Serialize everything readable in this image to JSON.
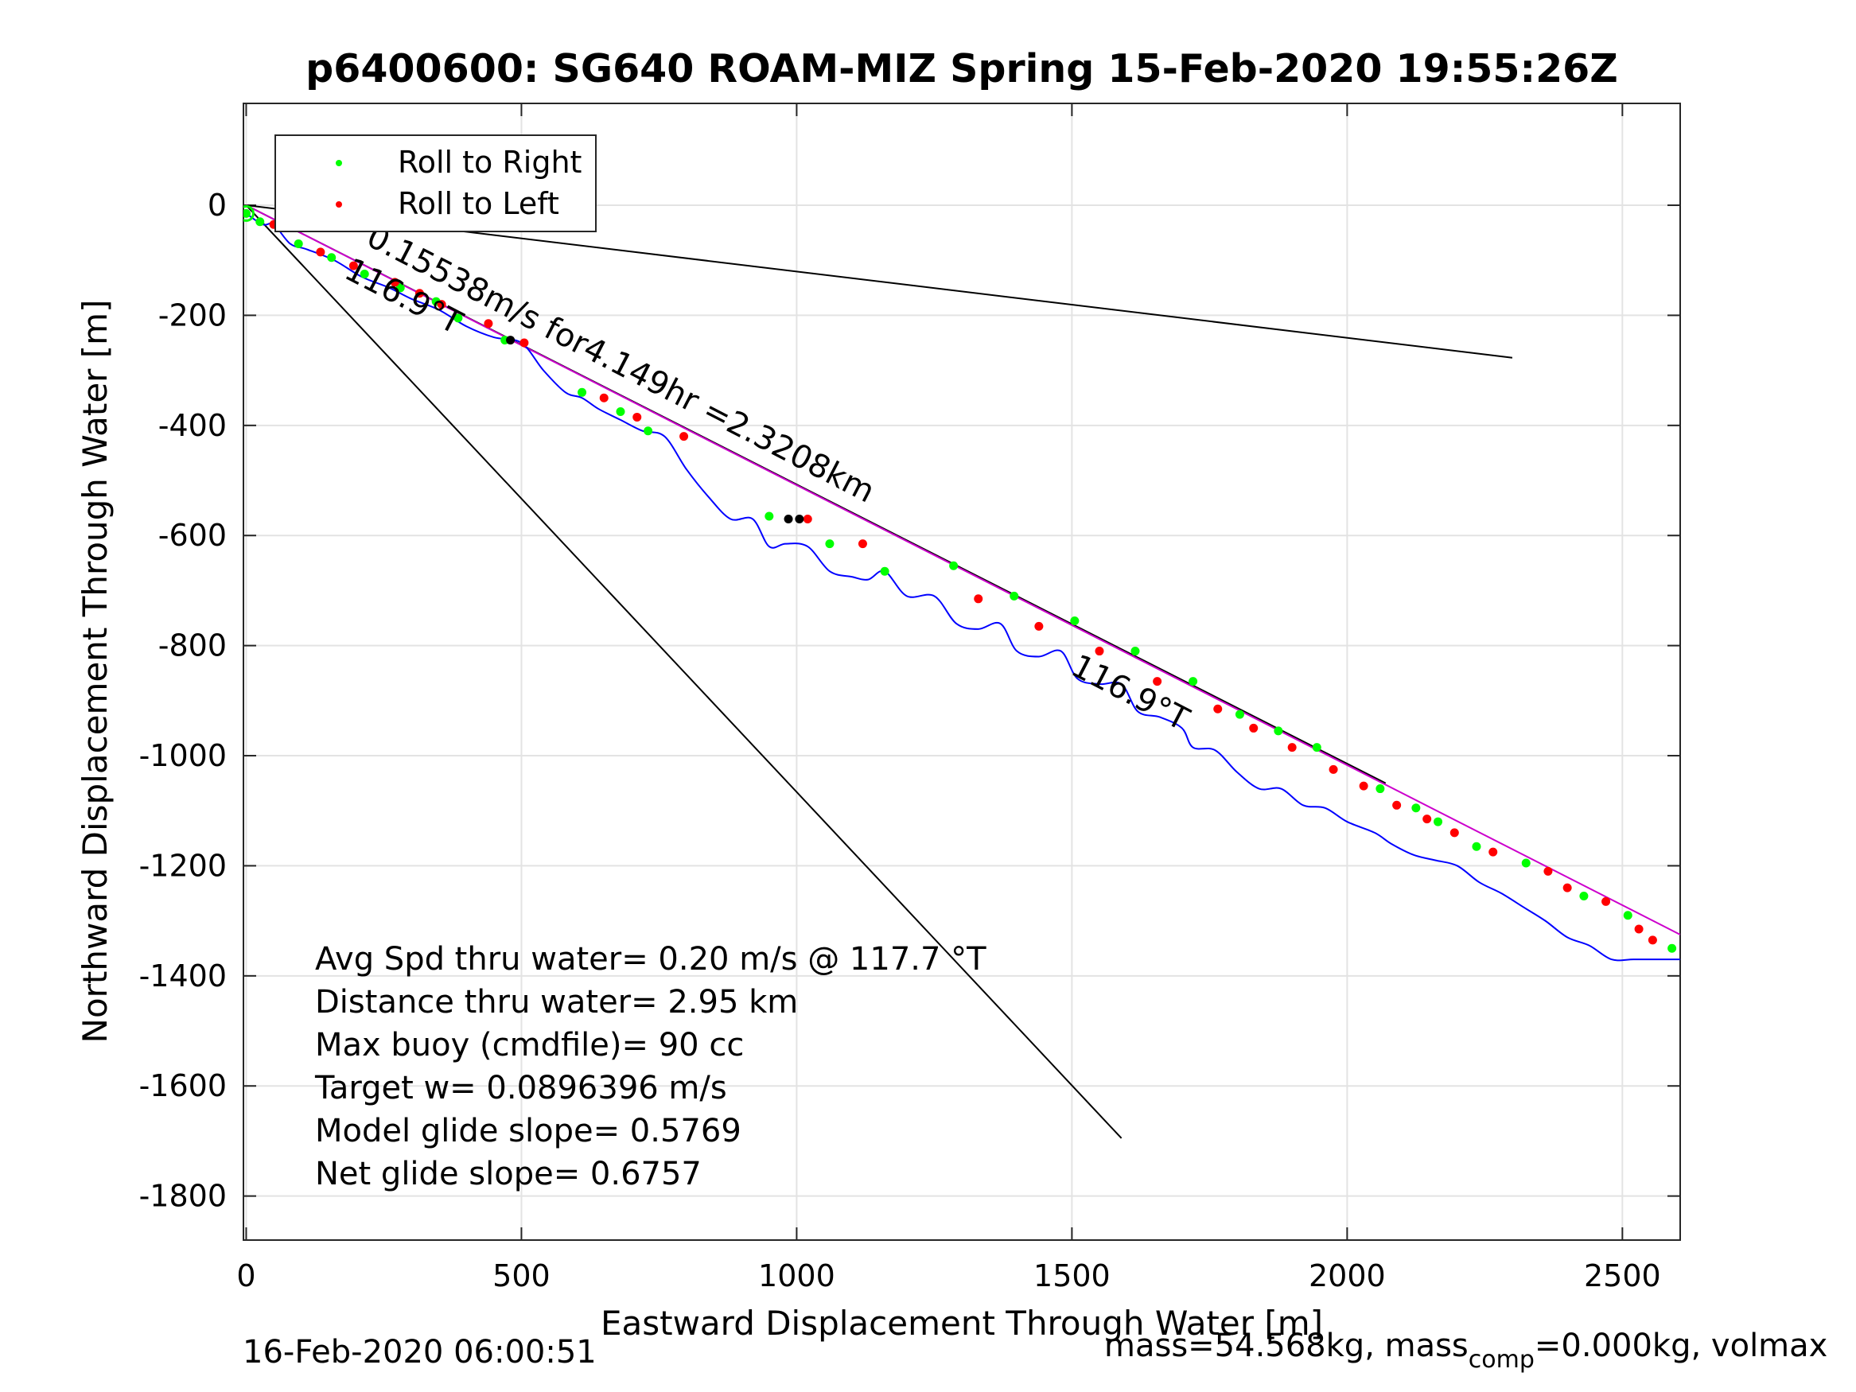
{
  "chart_data": {
    "type": "line",
    "title": "p6400600: SG640 ROAM-MIZ Spring 15-Feb-2020 19:55:26Z",
    "xlabel": "Eastward Displacement Through Water [m]",
    "ylabel": "Northward Displacement Through Water [m]",
    "xlim": [
      -5,
      2605
    ],
    "ylim": [
      -1880,
      185
    ],
    "xticks": [
      0,
      500,
      1000,
      1500,
      2000,
      2500
    ],
    "yticks": [
      0,
      -200,
      -400,
      -600,
      -800,
      -1000,
      -1200,
      -1400,
      -1600,
      -1800
    ],
    "grid": true,
    "legend": {
      "position": "top-left",
      "entries": [
        {
          "name": "Roll to Right",
          "color": "#00ff00"
        },
        {
          "name": "Roll to Left",
          "color": "#ff0000"
        }
      ]
    },
    "colors": {
      "track": "#0000ff",
      "heading": "#cc00cc",
      "reference": "#000000",
      "roll_right": "#00ff00",
      "roll_left": "#ff0000"
    },
    "track": {
      "x": [
        0,
        30,
        50,
        80,
        110,
        160,
        210,
        260,
        300,
        350,
        400,
        450,
        500,
        540,
        580,
        610,
        640,
        680,
        720,
        760,
        800,
        840,
        880,
        920,
        950,
        980,
        1020,
        1060,
        1100,
        1130,
        1160,
        1200,
        1250,
        1290,
        1330,
        1370,
        1400,
        1440,
        1480,
        1510,
        1550,
        1590,
        1620,
        1660,
        1700,
        1720,
        1760,
        1800,
        1840,
        1880,
        1920,
        1960,
        2000,
        2050,
        2080,
        2120,
        2160,
        2200,
        2240,
        2280,
        2320,
        2360,
        2400,
        2440,
        2480,
        2520,
        2560,
        2605
      ],
      "y": [
        -15,
        -35,
        -35,
        -70,
        -80,
        -100,
        -130,
        -150,
        -170,
        -190,
        -220,
        -240,
        -250,
        -300,
        -340,
        -350,
        -370,
        -390,
        -410,
        -420,
        -480,
        -530,
        -570,
        -570,
        -620,
        -615,
        -620,
        -665,
        -675,
        -680,
        -665,
        -710,
        -710,
        -760,
        -770,
        -760,
        -810,
        -820,
        -810,
        -860,
        -870,
        -870,
        -920,
        -930,
        -950,
        -985,
        -990,
        -1030,
        -1060,
        -1060,
        -1090,
        -1095,
        -1120,
        -1140,
        -1160,
        -1180,
        -1190,
        -1200,
        -1230,
        -1250,
        -1275,
        -1300,
        -1330,
        -1345,
        -1370,
        -1370,
        -1370,
        -1370
      ]
    },
    "roll_right": {
      "x": [
        0,
        25,
        95,
        155,
        215,
        280,
        345,
        385,
        470,
        610,
        680,
        730,
        950,
        1060,
        1160,
        1285,
        1395,
        1505,
        1615,
        1720,
        1805,
        1875,
        1945,
        2060,
        2125,
        2165,
        2235,
        2325,
        2430,
        2510,
        2590
      ],
      "y": [
        -15,
        -30,
        -70,
        -95,
        -125,
        -150,
        -175,
        -205,
        -245,
        -340,
        -375,
        -410,
        -565,
        -615,
        -665,
        -655,
        -710,
        -755,
        -810,
        -865,
        -925,
        -955,
        -985,
        -1060,
        -1095,
        -1120,
        -1165,
        -1195,
        -1255,
        -1290,
        -1350
      ]
    },
    "roll_left": {
      "x": [
        50,
        135,
        195,
        270,
        315,
        355,
        440,
        505,
        650,
        710,
        795,
        1020,
        1120,
        1330,
        1440,
        1550,
        1655,
        1765,
        1830,
        1900,
        1975,
        2030,
        2090,
        2145,
        2195,
        2265,
        2365,
        2400,
        2470,
        2530,
        2555
      ],
      "y": [
        -35,
        -85,
        -110,
        -140,
        -160,
        -180,
        -215,
        -250,
        -350,
        -385,
        -420,
        -570,
        -615,
        -715,
        -765,
        -810,
        -865,
        -915,
        -950,
        -985,
        -1025,
        -1055,
        -1090,
        -1115,
        -1140,
        -1175,
        -1210,
        -1240,
        -1265,
        -1315,
        -1335
      ]
    },
    "stall_points": {
      "x": [
        480,
        985,
        1005
      ],
      "y": [
        -245,
        -570,
        -570
      ]
    },
    "heading_line": {
      "x": [
        0,
        2605
      ],
      "y": [
        0,
        -1325
      ]
    },
    "reference_lines": [
      {
        "x": [
          0,
          2300
        ],
        "y": [
          0,
          -277
        ]
      },
      {
        "x": [
          0,
          2070
        ],
        "y": [
          0,
          -1050
        ]
      },
      {
        "x": [
          0,
          1590
        ],
        "y": [
          0,
          -1695
        ]
      }
    ],
    "annotations": [
      {
        "text": "0.15538m/s for4.149hr =2.3208km",
        "x": 215,
        "y": -70,
        "angle": 27.3
      },
      {
        "text": "116.9°T",
        "x": 175,
        "y": -130,
        "angle": 27.3
      },
      {
        "text": "116.9°T",
        "x": 1495,
        "y": -850,
        "angle": 27.3
      }
    ],
    "stats": [
      "Avg Spd thru water=  0.20 m/s @ 117.7 °T",
      "Distance thru water=  2.95 km",
      "Max buoy (cmdfile)= 90 cc",
      "Target w= 0.0896396 m/s",
      "Model glide slope= 0.5769",
      "Net glide slope= 0.6757"
    ]
  },
  "footer": {
    "timestamp": "16-Feb-2020 06:00:51",
    "mass_prefix": "mass=54.568kg, mass",
    "mass_sub": "comp",
    "mass_suffix": "=0.000kg, volmax"
  }
}
